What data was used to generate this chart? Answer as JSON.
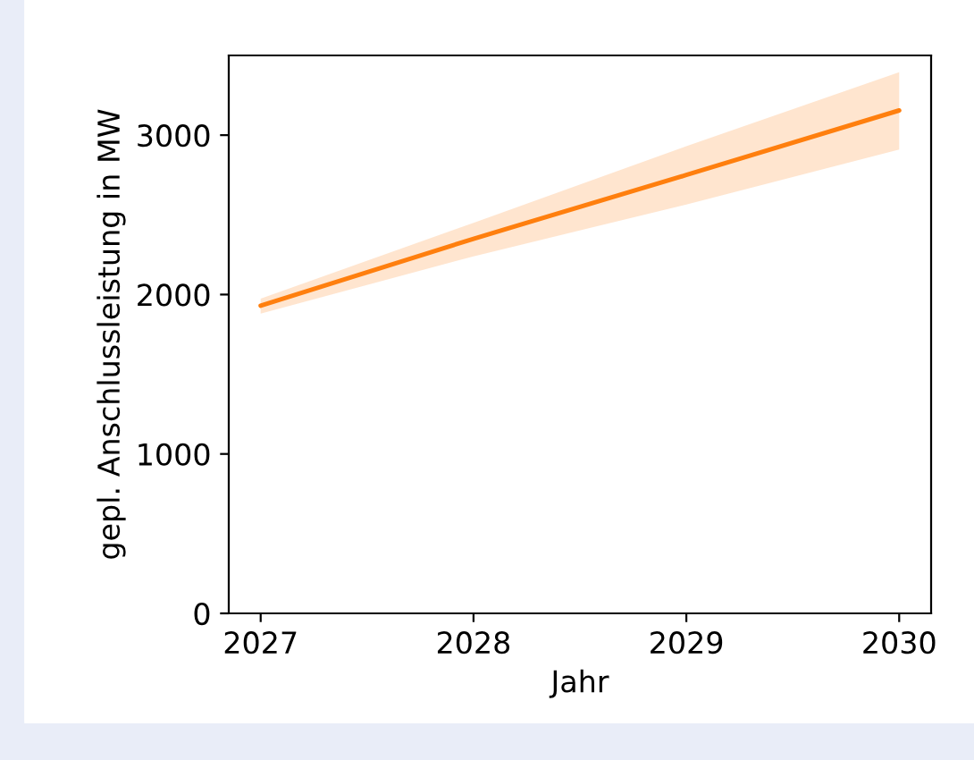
{
  "chart_data": {
    "type": "line",
    "xlabel": "Jahr",
    "ylabel": "gepl. Anschlussleistung in MW",
    "x": [
      2027,
      2028,
      2029,
      2030
    ],
    "series": [
      {
        "color": "#ff7f0e",
        "values": [
          1930,
          2350,
          2750,
          3155
        ],
        "lower": [
          1880,
          2240,
          2565,
          2910
        ],
        "upper": [
          1975,
          2450,
          2930,
          3395
        ]
      }
    ],
    "xlim": [
      2026.85,
      2030.15
    ],
    "ylim": [
      0,
      3500
    ],
    "xticks": [
      2027,
      2028,
      2029,
      2030
    ],
    "yticks": [
      0,
      1000,
      2000,
      3000
    ],
    "grid": false,
    "legend": false
  }
}
